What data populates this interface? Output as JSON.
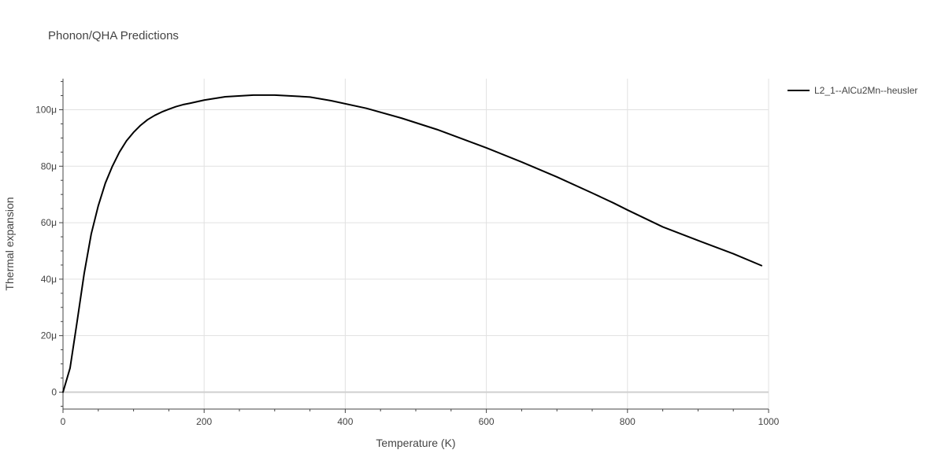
{
  "chart_data": {
    "type": "line",
    "title": "Phonon/QHA Predictions",
    "xlabel": "Temperature (K)",
    "ylabel": "Thermal expansion",
    "xlim": [
      0,
      1000
    ],
    "ylim": [
      -6e-06,
      0.000111
    ],
    "x_ticks": [
      {
        "value": 0,
        "label": "0"
      },
      {
        "value": 200,
        "label": "200"
      },
      {
        "value": 400,
        "label": "400"
      },
      {
        "value": 600,
        "label": "600"
      },
      {
        "value": 800,
        "label": "800"
      },
      {
        "value": 1000,
        "label": "1000"
      }
    ],
    "y_ticks": [
      {
        "value": 0,
        "label": "0"
      },
      {
        "value": 2e-05,
        "label": "20μ"
      },
      {
        "value": 4e-05,
        "label": "40μ"
      },
      {
        "value": 6e-05,
        "label": "60μ"
      },
      {
        "value": 8e-05,
        "label": "80μ"
      },
      {
        "value": 0.0001,
        "label": "100μ"
      }
    ],
    "grid": true,
    "legend_position": "top-right",
    "series": [
      {
        "name": "L2_1--AlCu2Mn--heusler",
        "color": "#000000",
        "x": [
          0,
          10,
          20,
          30,
          40,
          50,
          60,
          70,
          80,
          90,
          100,
          110,
          120,
          130,
          140,
          150,
          160,
          170,
          180,
          200,
          230,
          270,
          300,
          350,
          380,
          430,
          480,
          530,
          600,
          650,
          700,
          750,
          780,
          800,
          850,
          900,
          950,
          990
        ],
        "y": [
          0,
          8.5e-06,
          2.5e-05,
          4.2e-05,
          5.6e-05,
          6.6e-05,
          7.4e-05,
          8e-05,
          8.5e-05,
          8.9e-05,
          9.2e-05,
          9.45e-05,
          9.65e-05,
          9.8e-05,
          9.92e-05,
          0.0001002,
          0.0001011,
          0.0001018,
          0.0001023,
          0.0001034,
          0.0001046,
          0.0001052,
          0.0001052,
          0.0001045,
          0.0001032,
          0.0001005,
          9.7e-05,
          9.3e-05,
          8.65e-05,
          8.15e-05,
          7.62e-05,
          7.05e-05,
          6.7e-05,
          6.45e-05,
          5.85e-05,
          5.37e-05,
          4.9e-05,
          4.48e-05
        ]
      }
    ]
  }
}
